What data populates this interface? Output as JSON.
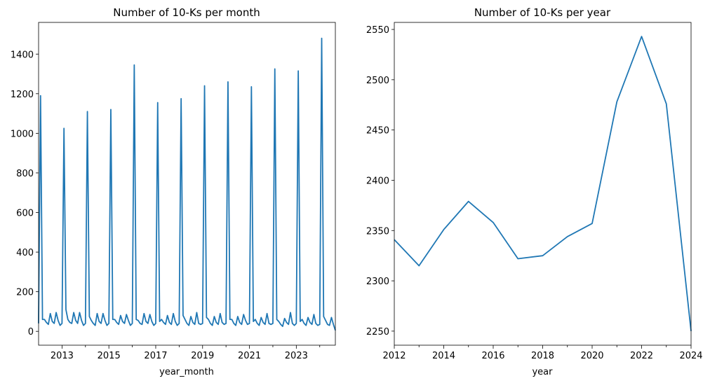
{
  "chart_data": [
    {
      "type": "line",
      "title": "Number of 10-Ks per month",
      "xlabel": "year_month",
      "ylabel": "",
      "xlim": [
        "2012-01",
        "2024-09"
      ],
      "ylim": [
        -70,
        1560
      ],
      "yticks": [
        0,
        200,
        400,
        600,
        800,
        1000,
        1200,
        1400
      ],
      "xticks": [
        "2013",
        "2015",
        "2017",
        "2019",
        "2021",
        "2023"
      ],
      "grid": false,
      "series": [
        {
          "x": [
            "2012-01",
            "2012-02",
            "2012-03",
            "2012-04",
            "2012-05",
            "2012-06",
            "2012-07",
            "2012-08",
            "2012-09",
            "2012-10",
            "2012-11",
            "2012-12",
            "2013-01",
            "2013-02",
            "2013-03",
            "2013-04",
            "2013-05",
            "2013-06",
            "2013-07",
            "2013-08",
            "2013-09",
            "2013-10",
            "2013-11",
            "2013-12",
            "2014-01",
            "2014-02",
            "2014-03",
            "2014-04",
            "2014-05",
            "2014-06",
            "2014-07",
            "2014-08",
            "2014-09",
            "2014-10",
            "2014-11",
            "2014-12",
            "2015-01",
            "2015-02",
            "2015-03",
            "2015-04",
            "2015-05",
            "2015-06",
            "2015-07",
            "2015-08",
            "2015-09",
            "2015-10",
            "2015-11",
            "2015-12",
            "2016-01",
            "2016-02",
            "2016-03",
            "2016-04",
            "2016-05",
            "2016-06",
            "2016-07",
            "2016-08",
            "2016-09",
            "2016-10",
            "2016-11",
            "2016-12",
            "2017-01",
            "2017-02",
            "2017-03",
            "2017-04",
            "2017-05",
            "2017-06",
            "2017-07",
            "2017-08",
            "2017-09",
            "2017-10",
            "2017-11",
            "2017-12",
            "2018-01",
            "2018-02",
            "2018-03",
            "2018-04",
            "2018-05",
            "2018-06",
            "2018-07",
            "2018-08",
            "2018-09",
            "2018-10",
            "2018-11",
            "2018-12",
            "2019-01",
            "2019-02",
            "2019-03",
            "2019-04",
            "2019-05",
            "2019-06",
            "2019-07",
            "2019-08",
            "2019-09",
            "2019-10",
            "2019-11",
            "2019-12",
            "2020-01",
            "2020-02",
            "2020-03",
            "2020-04",
            "2020-05",
            "2020-06",
            "2020-07",
            "2020-08",
            "2020-09",
            "2020-10",
            "2020-11",
            "2020-12",
            "2021-01",
            "2021-02",
            "2021-03",
            "2021-04",
            "2021-05",
            "2021-06",
            "2021-07",
            "2021-08",
            "2021-09",
            "2021-10",
            "2021-11",
            "2021-12",
            "2022-01",
            "2022-02",
            "2022-03",
            "2022-04",
            "2022-05",
            "2022-06",
            "2022-07",
            "2022-08",
            "2022-09",
            "2022-10",
            "2022-11",
            "2022-12",
            "2023-01",
            "2023-02",
            "2023-03",
            "2023-04",
            "2023-05",
            "2023-06",
            "2023-07",
            "2023-08",
            "2023-09",
            "2023-10",
            "2023-11",
            "2023-12",
            "2024-01",
            "2024-02",
            "2024-03",
            "2024-04",
            "2024-05",
            "2024-06",
            "2024-07",
            "2024-08",
            "2024-09"
          ],
          "values": [
            40,
            1190,
            60,
            60,
            45,
            35,
            90,
            50,
            40,
            95,
            55,
            30,
            40,
            1025,
            110,
            60,
            45,
            40,
            95,
            55,
            40,
            95,
            55,
            30,
            40,
            1110,
            75,
            55,
            40,
            30,
            90,
            50,
            40,
            90,
            55,
            30,
            40,
            1120,
            60,
            60,
            45,
            35,
            80,
            50,
            40,
            85,
            55,
            30,
            40,
            1345,
            60,
            55,
            40,
            35,
            90,
            50,
            40,
            85,
            50,
            30,
            40,
            1155,
            50,
            60,
            45,
            35,
            80,
            45,
            35,
            90,
            50,
            30,
            40,
            1175,
            80,
            60,
            40,
            30,
            75,
            45,
            35,
            95,
            40,
            35,
            40,
            1240,
            70,
            60,
            40,
            30,
            75,
            45,
            35,
            90,
            45,
            35,
            40,
            1260,
            60,
            60,
            40,
            30,
            75,
            45,
            35,
            85,
            55,
            35,
            40,
            1235,
            50,
            60,
            40,
            30,
            70,
            45,
            35,
            90,
            40,
            35,
            40,
            1325,
            60,
            50,
            35,
            25,
            65,
            45,
            35,
            95,
            40,
            30,
            40,
            1315,
            50,
            60,
            40,
            30,
            70,
            45,
            35,
            85,
            40,
            30,
            35,
            1480,
            75,
            55,
            35,
            30,
            70,
            35,
            5
          ]
        }
      ]
    },
    {
      "type": "line",
      "title": "Number of 10-Ks per year",
      "xlabel": "year",
      "ylabel": "",
      "xlim": [
        2012,
        2024
      ],
      "ylim": [
        2236,
        2557
      ],
      "yticks": [
        2250,
        2300,
        2350,
        2400,
        2450,
        2500,
        2550
      ],
      "xticks": [
        2012,
        2014,
        2016,
        2018,
        2020,
        2022,
        2024
      ],
      "grid": false,
      "series": [
        {
          "x": [
            2012,
            2013,
            2014,
            2015,
            2016,
            2017,
            2018,
            2019,
            2020,
            2021,
            2022,
            2023,
            2024
          ],
          "values": [
            2341,
            2315,
            2351,
            2379,
            2358,
            2322,
            2325,
            2344,
            2357,
            2478,
            2543,
            2476,
            2250
          ]
        }
      ]
    }
  ]
}
